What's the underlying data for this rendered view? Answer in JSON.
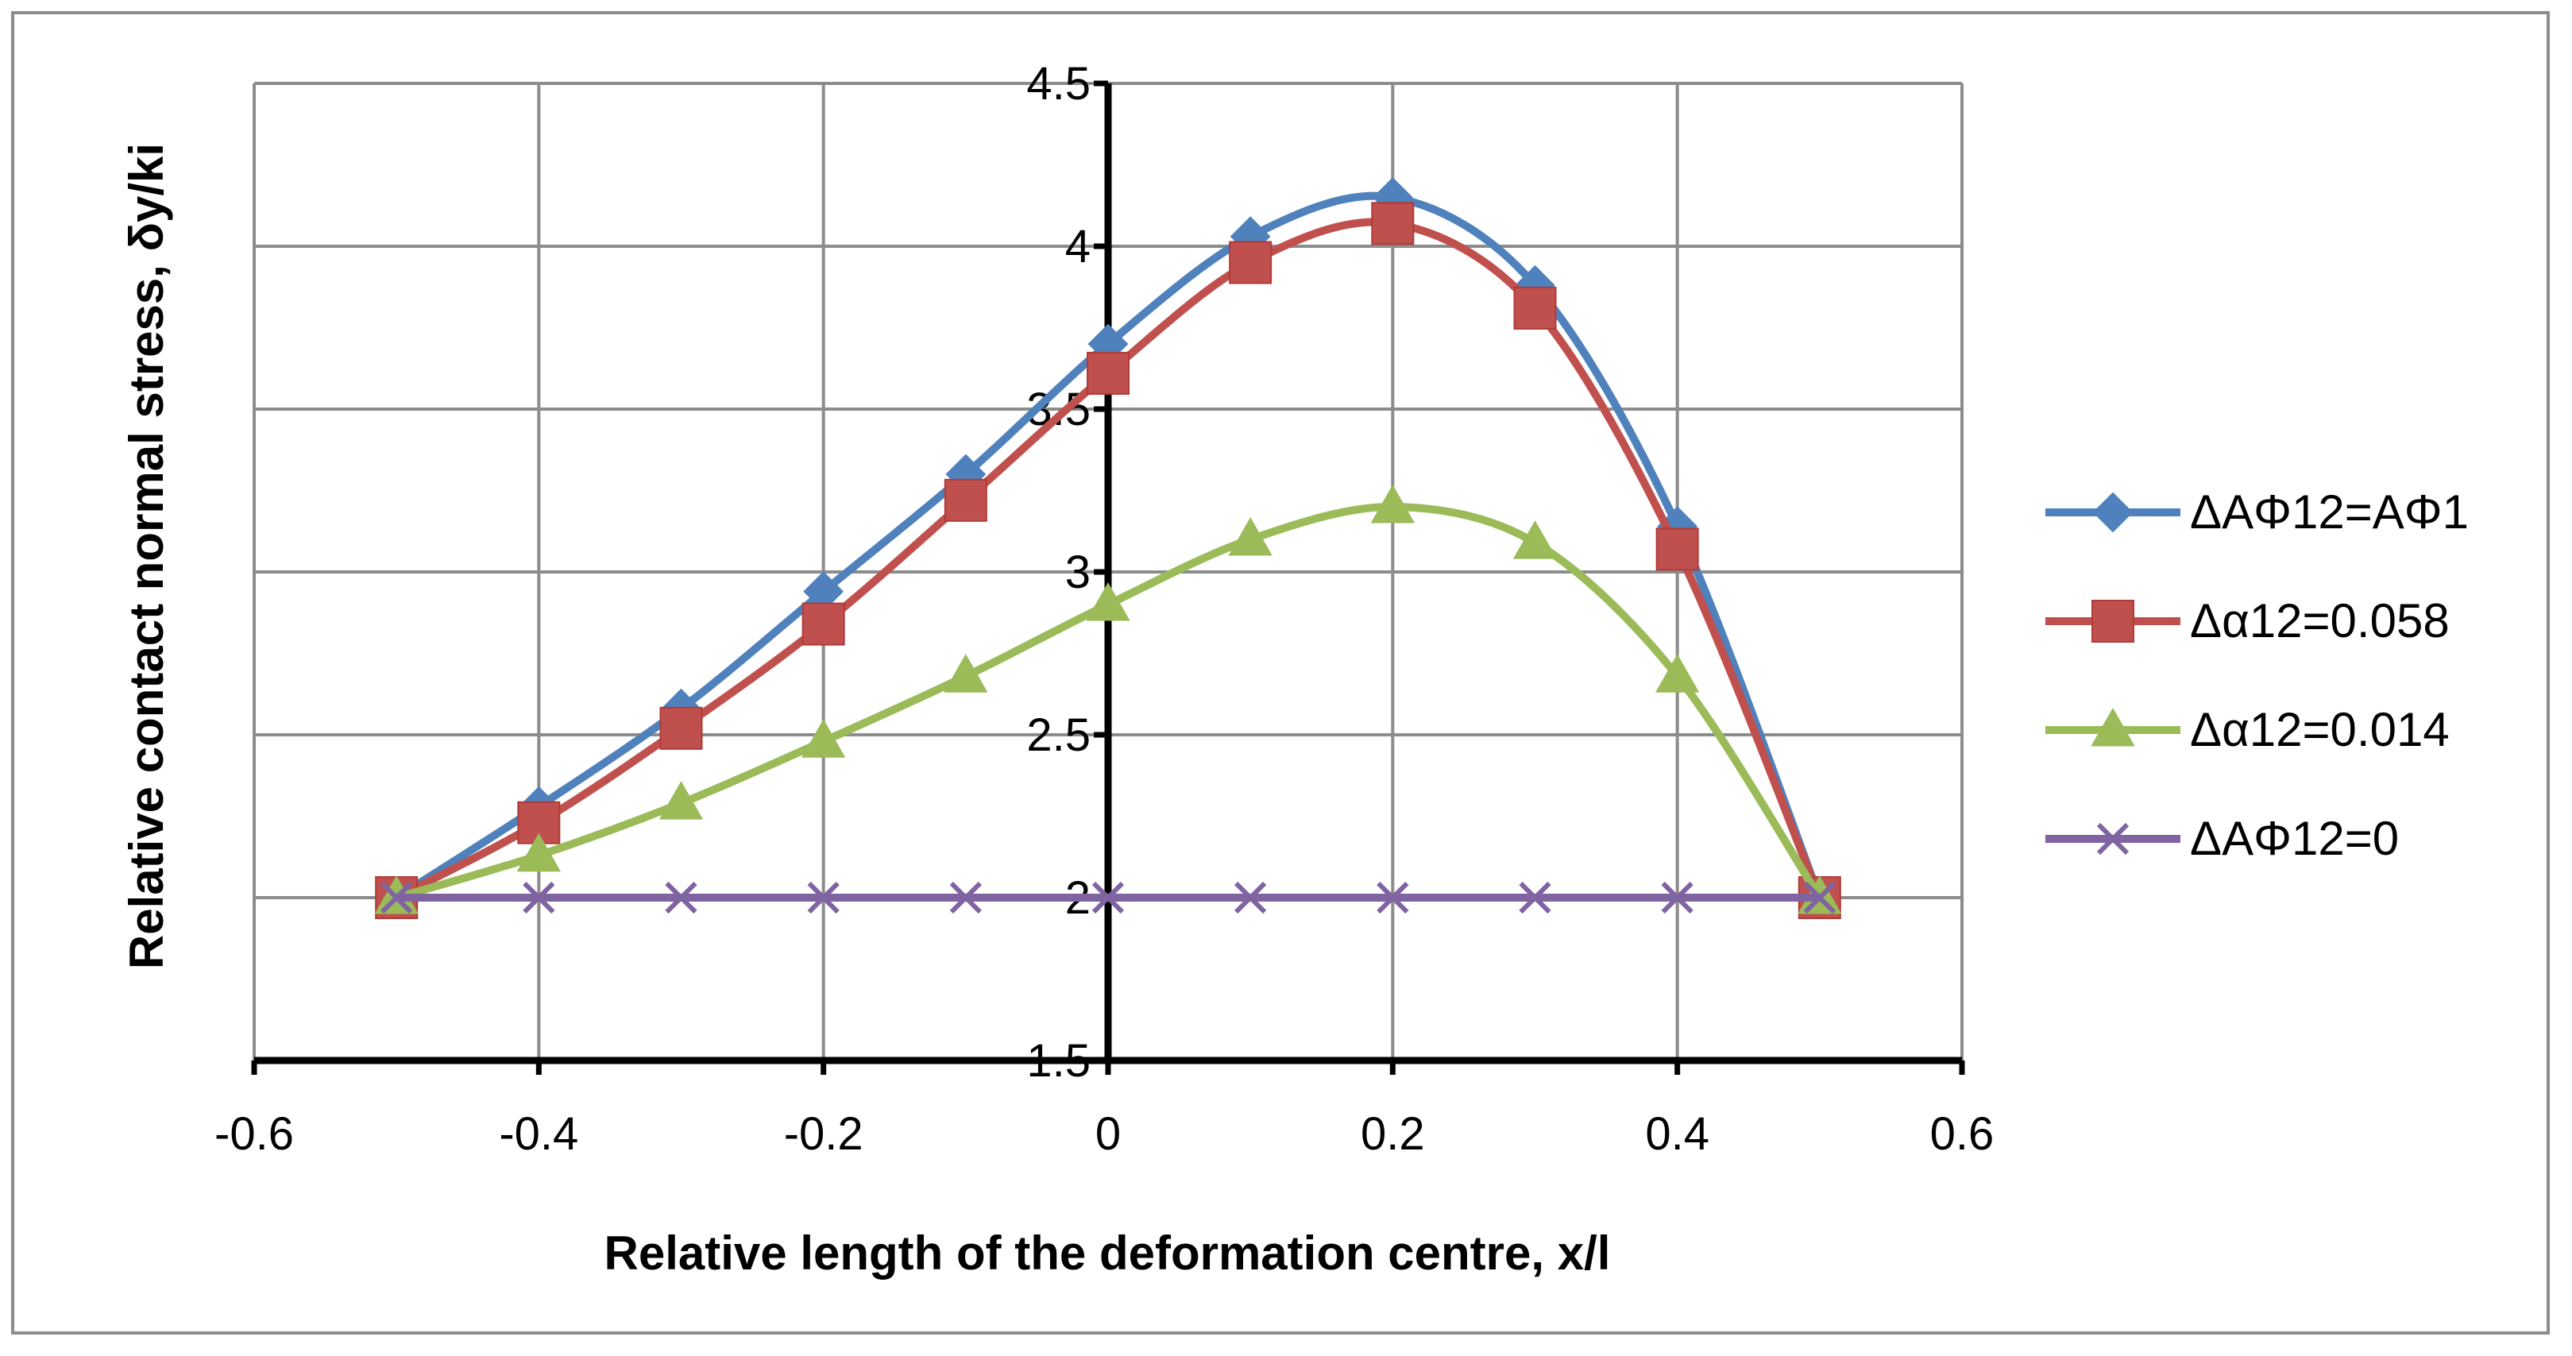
{
  "chart_data": {
    "type": "line",
    "title": "",
    "xlabel": "Relative length of the deformation centre, x/l",
    "ylabel": "Relative contact normal stress, δy/ki",
    "xlim": [
      -0.6,
      0.6
    ],
    "ylim": [
      1.5,
      4.5
    ],
    "x_ticks": [
      -0.6,
      -0.4,
      -0.2,
      0,
      0.2,
      0.4,
      0.6
    ],
    "x_tick_labels": [
      "-0.6",
      "-0.4",
      "-0.2",
      "0",
      "0.2",
      "0.4",
      "0.6"
    ],
    "y_ticks": [
      1.5,
      2,
      2.5,
      3,
      3.5,
      4,
      4.5
    ],
    "y_tick_labels": [
      "1.5",
      "2",
      "2.5",
      "3",
      "3.5",
      "4",
      "4.5"
    ],
    "grid": true,
    "smooth": true,
    "legend_position": "right",
    "x": [
      -0.5,
      -0.4,
      -0.3,
      -0.2,
      -0.1,
      0,
      0.1,
      0.2,
      0.3,
      0.4,
      0.5
    ],
    "series": [
      {
        "name": "ΔAΦ12=AΦ1",
        "color": "#4f81bd",
        "marker": "diamond",
        "values": [
          2.0,
          2.28,
          2.58,
          2.94,
          3.3,
          3.7,
          4.03,
          4.15,
          3.88,
          3.14,
          2.0
        ]
      },
      {
        "name": "Δα12=0.058",
        "color": "#c0504d",
        "marker": "square",
        "values": [
          2.0,
          2.23,
          2.52,
          2.84,
          3.22,
          3.61,
          3.95,
          4.07,
          3.81,
          3.07,
          2.0
        ]
      },
      {
        "name": "Δα12=0.014",
        "color": "#9bbb59",
        "marker": "triangle",
        "values": [
          2.0,
          2.13,
          2.29,
          2.48,
          2.68,
          2.9,
          3.1,
          3.2,
          3.09,
          2.68,
          2.0
        ]
      },
      {
        "name": "ΔAΦ12=0",
        "color": "#8064a2",
        "marker": "x",
        "values": [
          2.0,
          2.0,
          2.0,
          2.0,
          2.0,
          2.0,
          2.0,
          2.0,
          2.0,
          2.0,
          2.0
        ]
      }
    ]
  }
}
